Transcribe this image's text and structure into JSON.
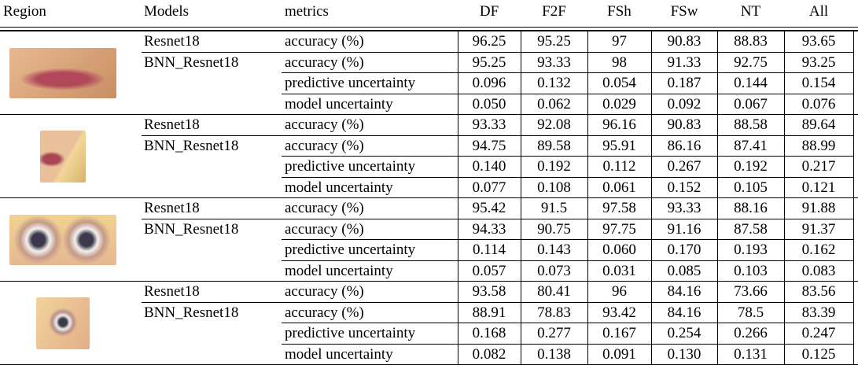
{
  "table": {
    "header": [
      "Region",
      "Models",
      "metrics",
      "DF",
      "F2F",
      "FSh",
      "FSw",
      "NT",
      "All"
    ],
    "groups": [
      {
        "rows": [
          {
            "model": "Resnet18",
            "metric": "accuracy (%)",
            "values": [
              "96.25",
              "95.25",
              "97",
              "90.83",
              "88.83",
              "93.65"
            ]
          },
          {
            "model": "BNN_Resnet18",
            "metric": "accuracy (%)",
            "values": [
              "95.25",
              "93.33",
              "98",
              "91.33",
              "92.75",
              "93.25"
            ]
          },
          {
            "metric": "predictive uncertainty",
            "values": [
              "0.096",
              "0.132",
              "0.054",
              "0.187",
              "0.144",
              "0.154"
            ]
          },
          {
            "metric": "model uncertainty",
            "values": [
              "0.050",
              "0.062",
              "0.029",
              "0.092",
              "0.067",
              "0.076"
            ]
          }
        ]
      },
      {
        "rows": [
          {
            "model": "Resnet18",
            "metric": "accuracy (%)",
            "values": [
              "93.33",
              "92.08",
              "96.16",
              "90.83",
              "88.58",
              "89.64"
            ]
          },
          {
            "model": "BNN_Resnet18",
            "metric": "accuracy (%)",
            "values": [
              "94.75",
              "89.58",
              "95.91",
              "86.16",
              "87.41",
              "88.99"
            ]
          },
          {
            "metric": "predictive uncertainty",
            "values": [
              "0.140",
              "0.192",
              "0.112",
              "0.267",
              "0.192",
              "0.217"
            ]
          },
          {
            "metric": "model uncertainty",
            "values": [
              "0.077",
              "0.108",
              "0.061",
              "0.152",
              "0.105",
              "0.121"
            ]
          }
        ]
      },
      {
        "rows": [
          {
            "model": "Resnet18",
            "metric": "accuracy (%)",
            "values": [
              "95.42",
              "91.5",
              "97.58",
              "93.33",
              "88.16",
              "91.88"
            ]
          },
          {
            "model": "BNN_Resnet18",
            "metric": "accuracy (%)",
            "values": [
              "94.33",
              "90.75",
              "97.75",
              "91.16",
              "87.58",
              "91.37"
            ]
          },
          {
            "metric": "predictive uncertainty",
            "values": [
              "0.114",
              "0.143",
              "0.060",
              "0.170",
              "0.193",
              "0.162"
            ]
          },
          {
            "metric": "model uncertainty",
            "values": [
              "0.057",
              "0.073",
              "0.031",
              "0.085",
              "0.103",
              "0.083"
            ]
          }
        ]
      },
      {
        "rows": [
          {
            "model": "Resnet18",
            "metric": "accuracy (%)",
            "values": [
              "93.58",
              "80.41",
              "96",
              "84.16",
              "73.66",
              "83.56"
            ]
          },
          {
            "model": "BNN_Resnet18",
            "metric": "accuracy (%)",
            "values": [
              "88.91",
              "78.83",
              "93.42",
              "84.16",
              "78.5",
              "83.39"
            ]
          },
          {
            "metric": "predictive uncertainty",
            "values": [
              "0.168",
              "0.277",
              "0.167",
              "0.254",
              "0.266",
              "0.247"
            ]
          },
          {
            "metric": "model uncertainty",
            "values": [
              "0.082",
              "0.138",
              "0.091",
              "0.130",
              "0.131",
              "0.125"
            ]
          }
        ]
      }
    ]
  }
}
